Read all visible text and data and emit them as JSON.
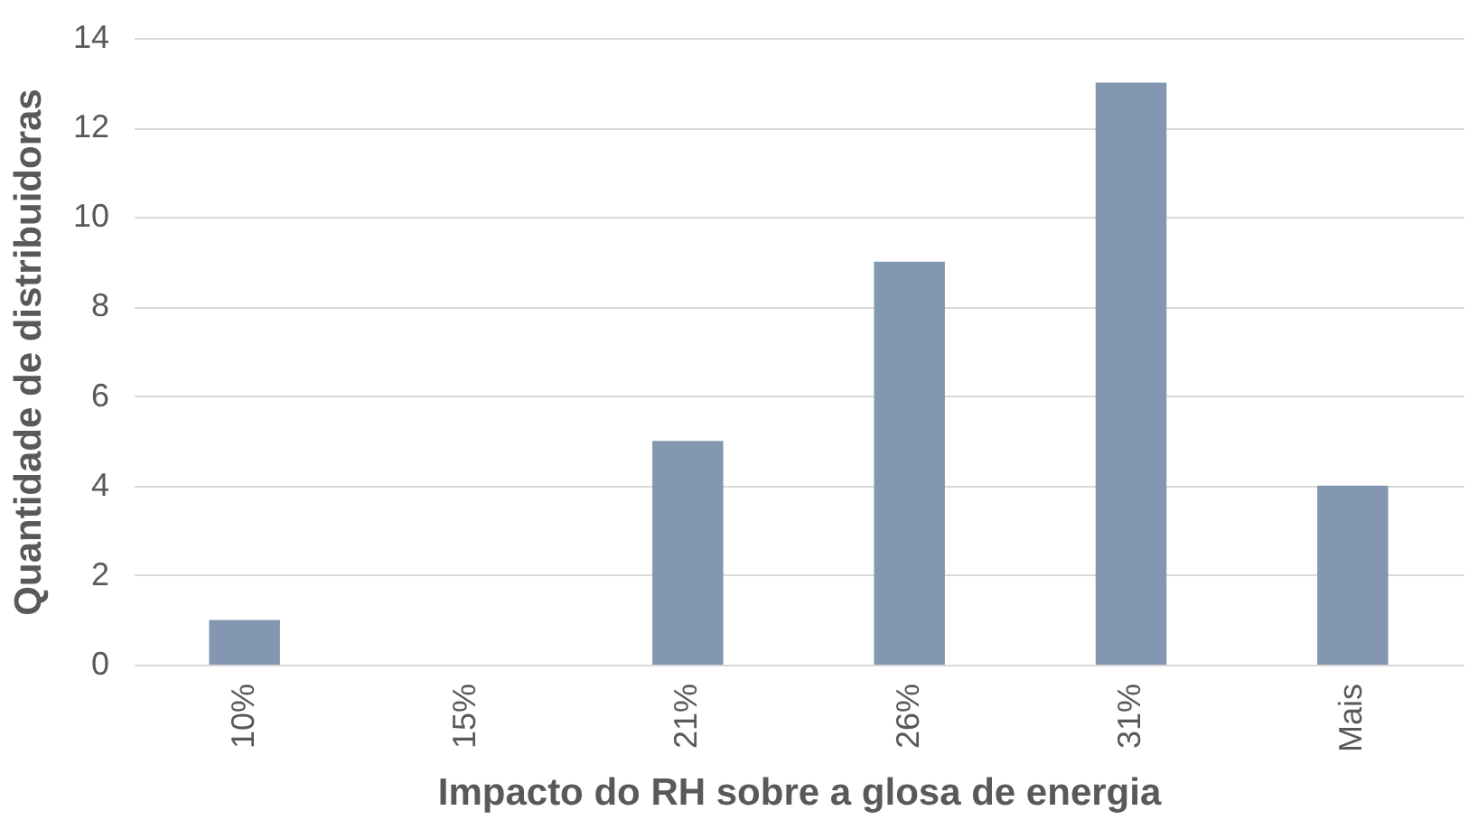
{
  "chart_data": {
    "type": "bar",
    "xlabel": "Impacto do RH sobre a glosa de energia",
    "ylabel": "Quantidade de distribuidoras",
    "categories": [
      "10%",
      "15%",
      "21%",
      "26%",
      "31%",
      "Mais"
    ],
    "values": [
      1,
      0,
      5,
      9,
      13,
      4
    ],
    "color": "#8497b0",
    "ylim": [
      0,
      14
    ],
    "yticks": [
      0,
      2,
      4,
      6,
      8,
      10,
      12,
      14
    ],
    "grid": "y"
  }
}
